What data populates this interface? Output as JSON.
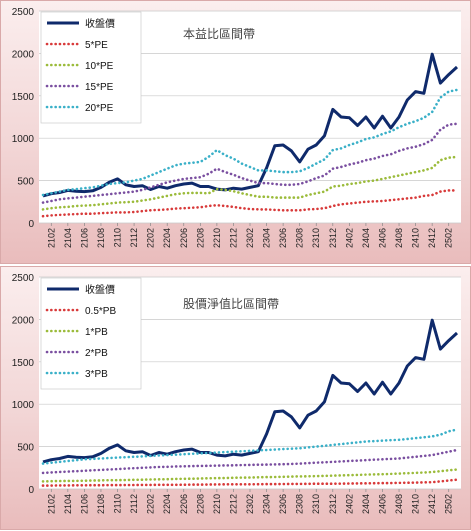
{
  "chart_data": [
    {
      "type": "line",
      "title": "本益比區間帶",
      "ylim": [
        0,
        2500
      ],
      "yticks": [
        0,
        500,
        1000,
        1500,
        2000,
        2500
      ],
      "legend_position": "top-left",
      "x": [
        "2101",
        "2102",
        "2103",
        "2104",
        "2105",
        "2106",
        "2107",
        "2108",
        "2109",
        "2110",
        "2111",
        "2112",
        "2201",
        "2202",
        "2203",
        "2204",
        "2205",
        "2206",
        "2207",
        "2208",
        "2209",
        "2210",
        "2211",
        "2212",
        "2301",
        "2302",
        "2303",
        "2304",
        "2305",
        "2306",
        "2307",
        "2308",
        "2309",
        "2310",
        "2311",
        "2312",
        "2401",
        "2402",
        "2403",
        "2404",
        "2405",
        "2406",
        "2407",
        "2408",
        "2409",
        "2410",
        "2411",
        "2412",
        "2501",
        "2502",
        "2503"
      ],
      "x_tick_labels": [
        "2102",
        "2104",
        "2106",
        "2108",
        "2110",
        "2112",
        "2202",
        "2204",
        "2206",
        "2208",
        "2210",
        "2212",
        "2302",
        "2304",
        "2306",
        "2308",
        "2310",
        "2312",
        "2402",
        "2404",
        "2406",
        "2408",
        "2410",
        "2412",
        "2502"
      ],
      "series": [
        {
          "name": "收盤價",
          "color": "#0f2a6b",
          "style": "solid",
          "values": [
            320,
            345,
            360,
            385,
            375,
            370,
            380,
            420,
            480,
            520,
            450,
            430,
            440,
            395,
            430,
            410,
            440,
            460,
            470,
            430,
            430,
            400,
            390,
            410,
            400,
            420,
            440,
            650,
            910,
            920,
            850,
            720,
            870,
            920,
            1030,
            1340,
            1250,
            1240,
            1150,
            1250,
            1120,
            1260,
            1120,
            1250,
            1450,
            1550,
            1530,
            1990,
            1650,
            1750,
            1840
          ]
        },
        {
          "name": "5*PE",
          "color": "#d83a3a",
          "style": "dotted",
          "values": [
            80,
            90,
            95,
            100,
            105,
            110,
            110,
            115,
            120,
            125,
            125,
            130,
            140,
            150,
            155,
            160,
            170,
            175,
            180,
            185,
            200,
            210,
            200,
            190,
            175,
            165,
            160,
            160,
            155,
            150,
            150,
            150,
            160,
            165,
            175,
            200,
            220,
            230,
            240,
            250,
            255,
            260,
            270,
            280,
            290,
            300,
            320,
            330,
            370,
            385,
            385
          ]
        },
        {
          "name": "10*PE",
          "color": "#9bbb3a",
          "style": "dotted",
          "values": [
            160,
            175,
            185,
            190,
            200,
            205,
            210,
            220,
            230,
            240,
            245,
            250,
            265,
            280,
            300,
            320,
            340,
            350,
            355,
            355,
            350,
            400,
            390,
            375,
            350,
            330,
            310,
            310,
            300,
            300,
            300,
            300,
            330,
            350,
            370,
            430,
            440,
            460,
            470,
            490,
            500,
            520,
            540,
            560,
            580,
            600,
            620,
            650,
            740,
            770,
            780
          ]
        },
        {
          "name": "15*PE",
          "color": "#7a4fa0",
          "style": "dotted",
          "values": [
            240,
            260,
            280,
            290,
            300,
            310,
            320,
            330,
            340,
            350,
            360,
            370,
            390,
            420,
            450,
            480,
            500,
            520,
            530,
            540,
            580,
            640,
            600,
            570,
            530,
            500,
            470,
            470,
            460,
            450,
            450,
            460,
            490,
            530,
            560,
            640,
            660,
            690,
            710,
            740,
            760,
            790,
            810,
            850,
            880,
            900,
            930,
            980,
            1100,
            1160,
            1170
          ]
        },
        {
          "name": "20*PE",
          "color": "#3ab0c8",
          "style": "dotted",
          "values": [
            330,
            350,
            370,
            390,
            400,
            410,
            420,
            440,
            460,
            470,
            480,
            500,
            520,
            560,
            600,
            640,
            680,
            700,
            710,
            720,
            780,
            860,
            800,
            760,
            700,
            660,
            620,
            620,
            610,
            600,
            600,
            610,
            650,
            700,
            750,
            860,
            880,
            920,
            950,
            990,
            1010,
            1050,
            1080,
            1130,
            1170,
            1200,
            1240,
            1310,
            1480,
            1550,
            1570
          ]
        }
      ]
    },
    {
      "type": "line",
      "title": "股價淨值比區間帶",
      "ylim": [
        0,
        2500
      ],
      "yticks": [
        0,
        500,
        1000,
        1500,
        2000,
        2500
      ],
      "legend_position": "top-left",
      "x": [
        "2101",
        "2102",
        "2103",
        "2104",
        "2105",
        "2106",
        "2107",
        "2108",
        "2109",
        "2110",
        "2111",
        "2112",
        "2201",
        "2202",
        "2203",
        "2204",
        "2205",
        "2206",
        "2207",
        "2208",
        "2209",
        "2210",
        "2211",
        "2212",
        "2301",
        "2302",
        "2303",
        "2304",
        "2305",
        "2306",
        "2307",
        "2308",
        "2309",
        "2310",
        "2311",
        "2312",
        "2401",
        "2402",
        "2403",
        "2404",
        "2405",
        "2406",
        "2407",
        "2408",
        "2409",
        "2410",
        "2411",
        "2412",
        "2501",
        "2502",
        "2503"
      ],
      "x_tick_labels": [
        "2102",
        "2104",
        "2106",
        "2108",
        "2110",
        "2112",
        "2202",
        "2204",
        "2206",
        "2208",
        "2210",
        "2212",
        "2302",
        "2304",
        "2306",
        "2308",
        "2310",
        "2312",
        "2402",
        "2404",
        "2406",
        "2408",
        "2410",
        "2412",
        "2502"
      ],
      "series": [
        {
          "name": "收盤價",
          "color": "#0f2a6b",
          "style": "solid",
          "values": [
            320,
            345,
            360,
            385,
            375,
            370,
            380,
            420,
            480,
            520,
            450,
            430,
            440,
            395,
            430,
            410,
            440,
            460,
            470,
            430,
            430,
            400,
            390,
            410,
            400,
            420,
            440,
            650,
            910,
            920,
            850,
            720,
            870,
            920,
            1030,
            1340,
            1250,
            1240,
            1150,
            1250,
            1120,
            1260,
            1120,
            1250,
            1450,
            1550,
            1530,
            1990,
            1650,
            1750,
            1840
          ]
        },
        {
          "name": "0.5*PB",
          "color": "#d83a3a",
          "style": "dotted",
          "values": [
            40,
            40,
            42,
            42,
            44,
            44,
            45,
            45,
            46,
            46,
            47,
            47,
            48,
            48,
            49,
            50,
            50,
            51,
            52,
            52,
            53,
            54,
            55,
            55,
            56,
            56,
            57,
            58,
            58,
            59,
            60,
            60,
            61,
            62,
            62,
            63,
            64,
            65,
            66,
            67,
            68,
            69,
            70,
            72,
            74,
            76,
            78,
            80,
            90,
            100,
            110
          ]
        },
        {
          "name": "1*PB",
          "color": "#9bbb3a",
          "style": "dotted",
          "values": [
            90,
            92,
            94,
            95,
            96,
            98,
            100,
            102,
            104,
            105,
            106,
            108,
            110,
            112,
            114,
            116,
            118,
            120,
            122,
            124,
            126,
            128,
            130,
            132,
            134,
            136,
            138,
            140,
            142,
            144,
            146,
            148,
            150,
            152,
            155,
            158,
            160,
            163,
            166,
            170,
            172,
            175,
            178,
            182,
            186,
            190,
            195,
            200,
            210,
            220,
            230
          ]
        },
        {
          "name": "2*PB",
          "color": "#7a4fa0",
          "style": "dotted",
          "values": [
            190,
            195,
            200,
            205,
            210,
            215,
            220,
            225,
            230,
            235,
            240,
            245,
            250,
            255,
            260,
            262,
            265,
            268,
            270,
            272,
            274,
            276,
            278,
            280,
            282,
            284,
            286,
            288,
            290,
            292,
            295,
            300,
            305,
            310,
            315,
            320,
            325,
            330,
            335,
            340,
            345,
            350,
            355,
            360,
            370,
            380,
            390,
            400,
            420,
            440,
            460
          ]
        },
        {
          "name": "3*PB",
          "color": "#3ab0c8",
          "style": "dotted",
          "values": [
            300,
            310,
            320,
            330,
            340,
            350,
            355,
            360,
            365,
            370,
            375,
            380,
            385,
            390,
            395,
            400,
            405,
            410,
            415,
            420,
            425,
            430,
            435,
            440,
            445,
            450,
            455,
            460,
            465,
            470,
            475,
            480,
            490,
            500,
            510,
            520,
            530,
            540,
            550,
            560,
            565,
            570,
            575,
            580,
            590,
            600,
            610,
            620,
            640,
            680,
            700
          ]
        }
      ]
    }
  ]
}
